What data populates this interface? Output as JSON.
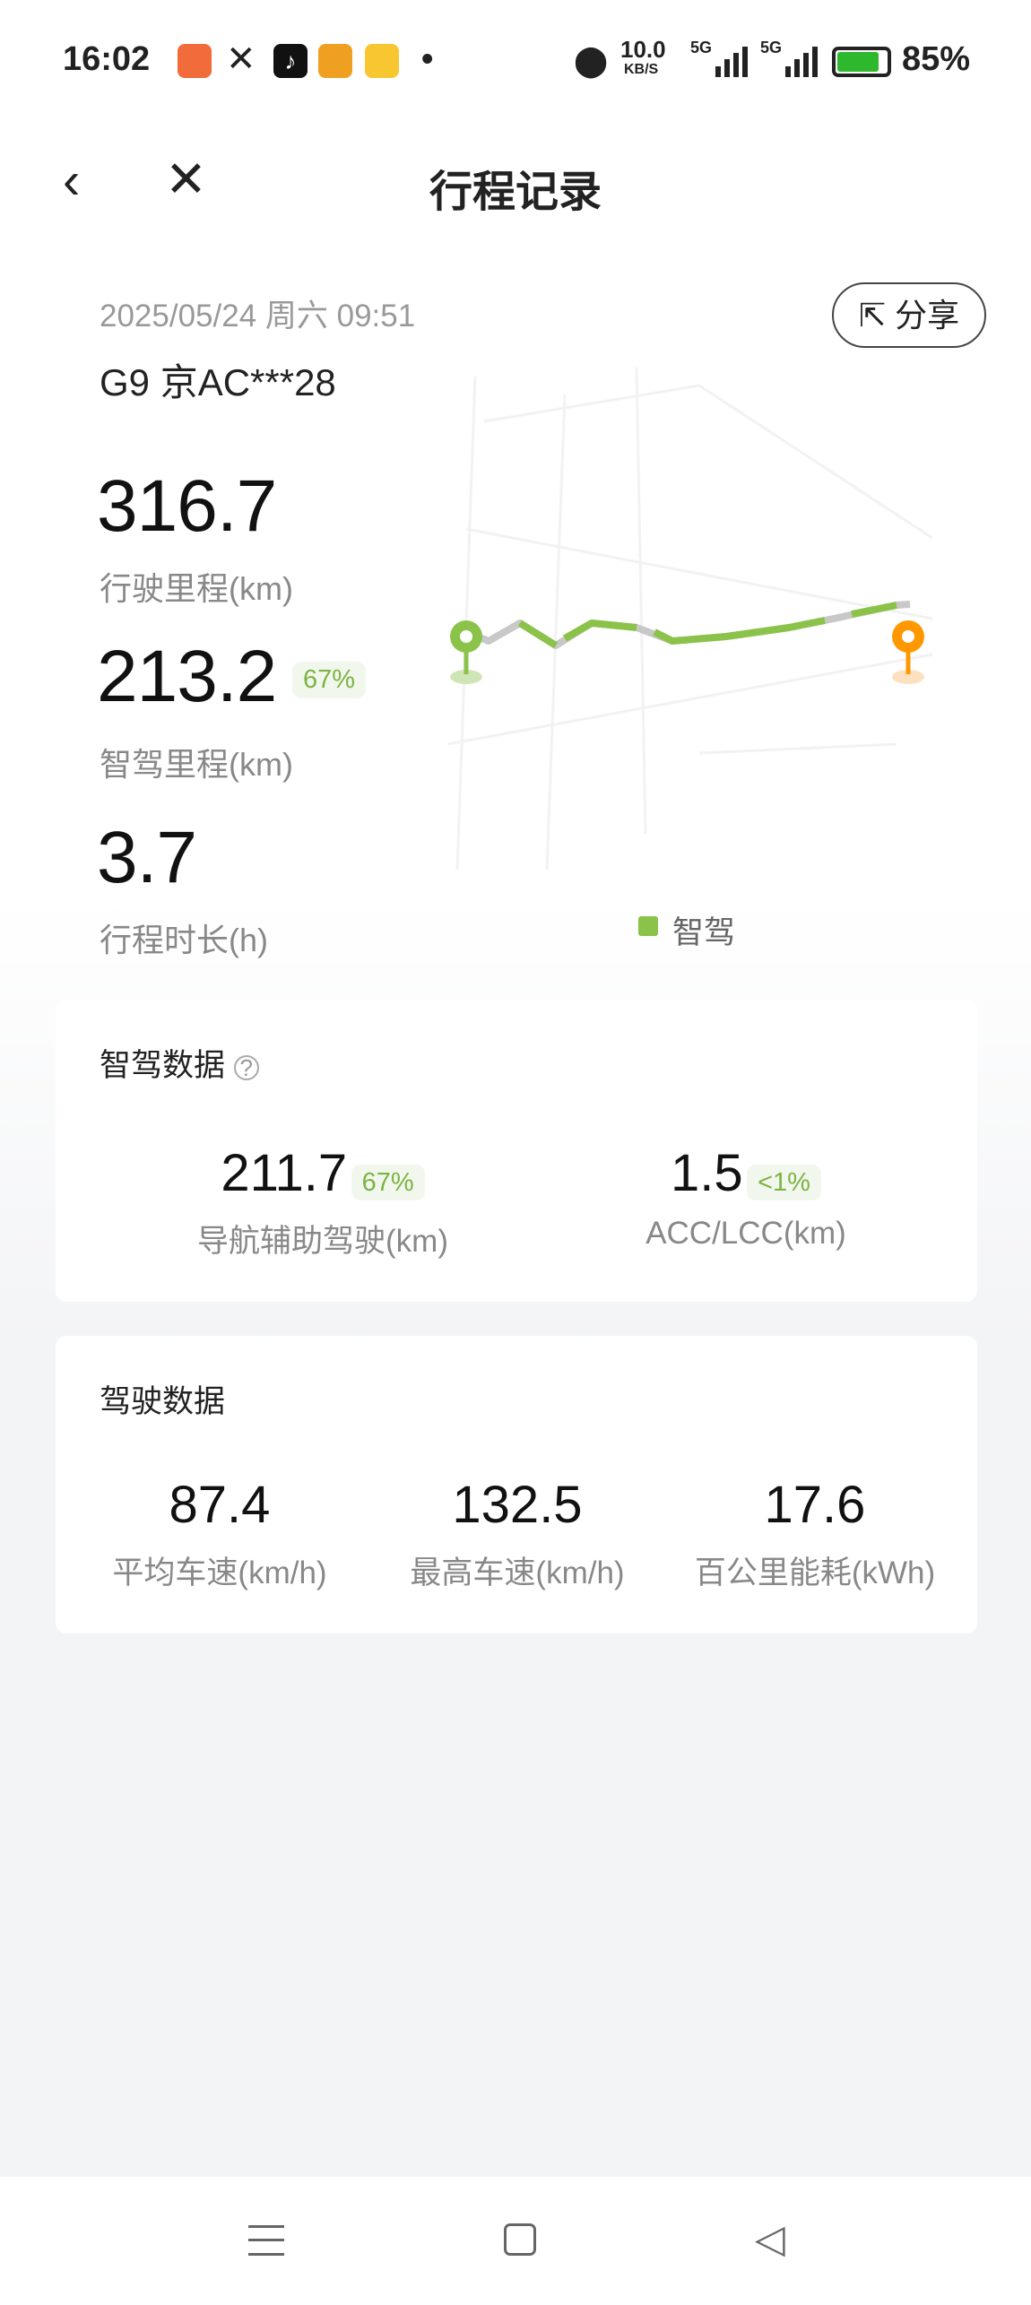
{
  "status_bar": {
    "time": "16:02",
    "net_speed": "10.0",
    "net_unit": "KB/S",
    "sig1": "5G",
    "sig2": "5G",
    "battery": "85%",
    "battery_level": 85
  },
  "header": {
    "title": "行程记录"
  },
  "trip": {
    "datetime": "2025/05/24 周六 09:51",
    "vehicle": "G9 京AC***28",
    "share_label": "分享",
    "distance": "316.7",
    "distance_label": "行驶里程(km)",
    "smart_distance": "213.2",
    "smart_pct": "67%",
    "smart_label": "智驾里程(km)",
    "duration": "3.7",
    "duration_label": "行程时长(h)",
    "legend": "智驾"
  },
  "colors": {
    "smart": "#8bc34a",
    "manual": "#c8c8c8",
    "start": "#8bc34a",
    "end": "#ff9800"
  },
  "smart_card": {
    "title": "智驾数据",
    "items": [
      {
        "value": "211.7",
        "pct": "67%",
        "label": "导航辅助驾驶(km)"
      },
      {
        "value": "1.5",
        "pct": "<1%",
        "label": "ACC/LCC(km)"
      }
    ]
  },
  "drive_card": {
    "title": "驾驶数据",
    "items": [
      {
        "value": "87.4",
        "label": "平均车速(km/h)"
      },
      {
        "value": "132.5",
        "label": "最高车速(km/h)"
      },
      {
        "value": "17.6",
        "label": "百公里能耗(kWh)"
      }
    ]
  }
}
